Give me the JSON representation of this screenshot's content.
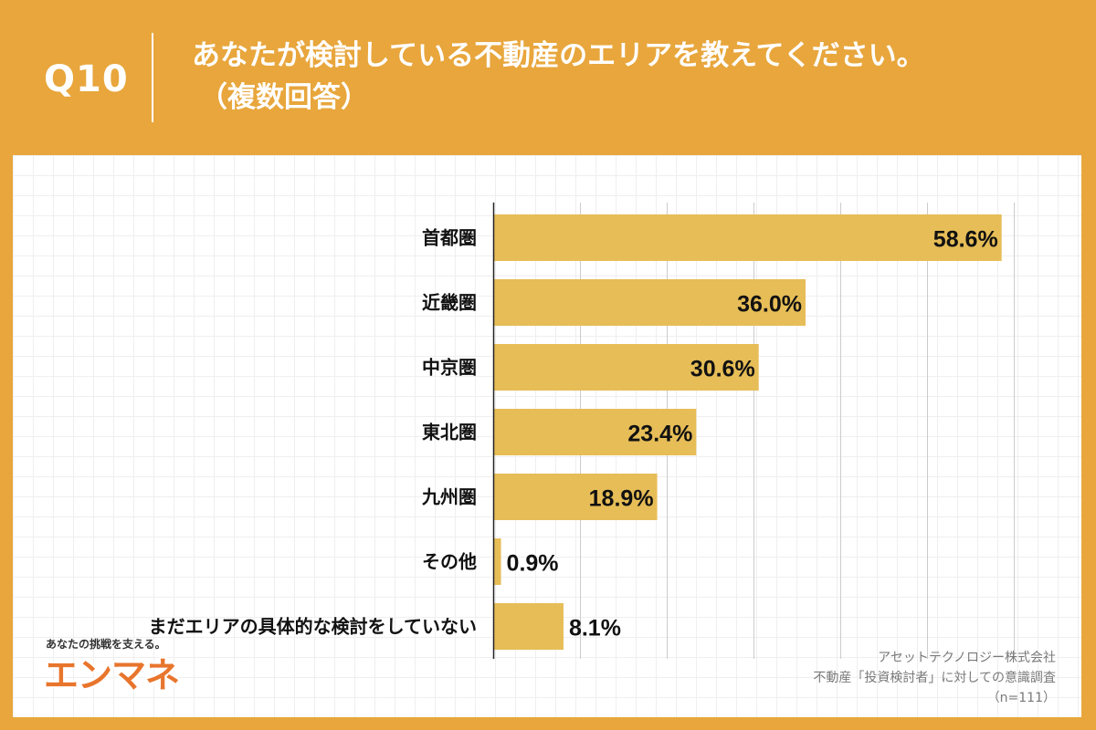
{
  "header": {
    "question_no": "Q10",
    "title_line1": "あなたが検討している不動産のエリアを教えてください。",
    "title_line2": "（複数回答）"
  },
  "chart_data": {
    "type": "bar",
    "orientation": "horizontal",
    "categories": [
      "首都圏",
      "近畿圏",
      "中京圏",
      "東北圏",
      "九州圏",
      "その他",
      "まだエリアの具体的な検討をしていない"
    ],
    "values": [
      58.6,
      36.0,
      30.6,
      23.4,
      18.9,
      0.9,
      8.1
    ],
    "value_labels": [
      "58.6%",
      "36.0%",
      "30.6%",
      "23.4%",
      "18.9%",
      "0.9%",
      "8.1%"
    ],
    "xlim": [
      0,
      60
    ],
    "grid": true,
    "bar_color": "#E6BD57",
    "gridline_color": "#cccccc"
  },
  "source": {
    "company": "アセットテクノロジー株式会社",
    "survey": "不動産「投資検討者」に対しての意識調査",
    "sample": "（n=111）"
  },
  "branding": {
    "tagline": "あなたの挑戦を支える。",
    "logo_text": "エンマネ"
  }
}
